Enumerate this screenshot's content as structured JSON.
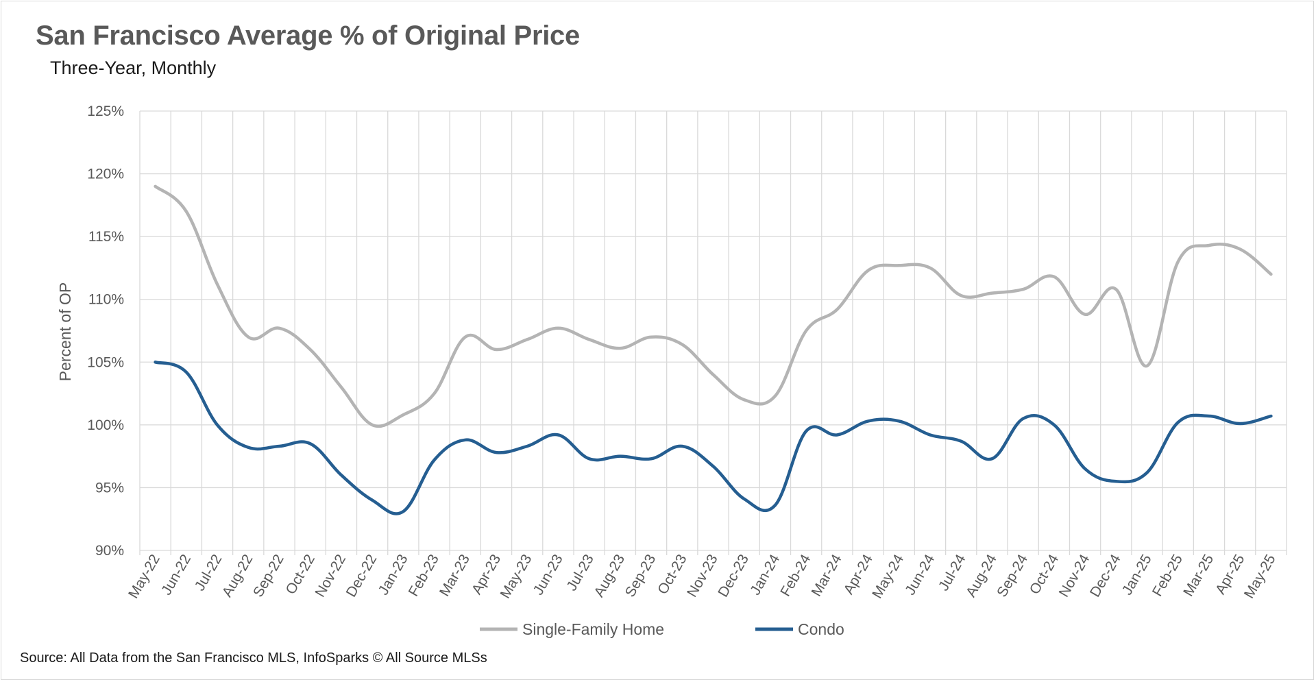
{
  "chart_data": {
    "type": "line",
    "title": "San Francisco Average % of Original Price",
    "subtitle": "Three-Year, Monthly",
    "ylabel": "Percent of OP",
    "xlabel": "",
    "ylim": [
      90,
      125
    ],
    "y_ticks": [
      "90%",
      "95%",
      "100%",
      "105%",
      "110%",
      "115%",
      "120%",
      "125%"
    ],
    "y_tick_values": [
      90,
      95,
      100,
      105,
      110,
      115,
      120,
      125
    ],
    "grid": true,
    "legend_position": "bottom",
    "categories": [
      "May-22",
      "Jun-22",
      "Jul-22",
      "Aug-22",
      "Sep-22",
      "Oct-22",
      "Nov-22",
      "Dec-22",
      "Jan-23",
      "Feb-23",
      "Mar-23",
      "Apr-23",
      "May-23",
      "Jun-23",
      "Jul-23",
      "Aug-23",
      "Sep-23",
      "Oct-23",
      "Nov-23",
      "Dec-23",
      "Jan-24",
      "Feb-24",
      "Mar-24",
      "Apr-24",
      "May-24",
      "Jun-24",
      "Jul-24",
      "Aug-24",
      "Sep-24",
      "Oct-24",
      "Nov-24",
      "Dec-24",
      "Jan-25",
      "Feb-25",
      "Mar-25",
      "Apr-25",
      "May-25"
    ],
    "series": [
      {
        "name": "Single-Family Home",
        "color": "#b4b4b4",
        "values": [
          119.0,
          117.0,
          111.2,
          107.0,
          107.7,
          106.0,
          103.0,
          100.0,
          100.8,
          102.5,
          107.0,
          106.0,
          106.8,
          107.7,
          106.8,
          106.1,
          107.0,
          106.4,
          104.0,
          102.0,
          102.3,
          107.5,
          109.2,
          112.3,
          112.7,
          112.5,
          110.3,
          110.5,
          110.8,
          111.8,
          108.8,
          110.8,
          104.7,
          113.0,
          114.3,
          114.0,
          112.0
        ]
      },
      {
        "name": "Condo",
        "color": "#255e91",
        "values": [
          105.0,
          104.2,
          100.0,
          98.2,
          98.3,
          98.5,
          96.0,
          94.0,
          93.1,
          97.2,
          98.8,
          97.8,
          98.3,
          99.2,
          97.3,
          97.5,
          97.3,
          98.3,
          96.7,
          94.1,
          93.6,
          99.5,
          99.2,
          100.3,
          100.3,
          99.2,
          98.7,
          97.3,
          100.5,
          100.0,
          96.5,
          95.5,
          96.2,
          100.2,
          100.7,
          100.1,
          100.7
        ]
      }
    ]
  },
  "source": "Source: All Data from the San Francisco MLS, InfoSparks © All Source MLSs"
}
